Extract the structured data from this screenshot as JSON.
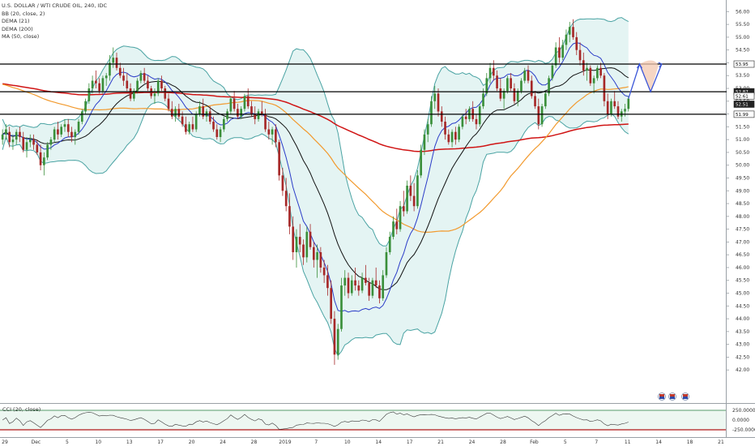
{
  "legend": {
    "symbol": "U.S. DOLLAR / WTI CRUDE OIL, 240, IDC",
    "bb": "BB (20, close, 2)",
    "dema21": "DEMA (21)",
    "dema200": "DEMA (200)",
    "ma50": "MA (50, close)"
  },
  "cci": {
    "label": "CCI (20, close)",
    "ticks": [
      "250.0000",
      "0.0000",
      "-250.0000"
    ]
  },
  "colors": {
    "up": "#3a8f3a",
    "down": "#a62828",
    "bb": "#4aa3a3",
    "bb_fill": "#d9f0ee",
    "dema21": "#2b3cc8",
    "dema200": "#d01414",
    "ma50": "#f29a2e",
    "sma": "#111111",
    "level": "#000000",
    "forecast": "#3a55d8",
    "forecast_fill": "#f3c8b0"
  },
  "chart_data": {
    "type": "candlestick",
    "y_axis": {
      "min": 41.5,
      "max": 56.2,
      "ticks": [
        "56.00",
        "55.50",
        "55.00",
        "54.50",
        "54.00",
        "53.50",
        "53.00",
        "52.50",
        "52.00",
        "51.50",
        "51.00",
        "50.50",
        "50.00",
        "49.50",
        "49.00",
        "48.50",
        "48.00",
        "47.50",
        "47.00",
        "46.50",
        "46.00",
        "45.50",
        "45.00",
        "44.50",
        "44.00",
        "43.50",
        "43.00",
        "42.50",
        "42.00"
      ]
    },
    "x_labels": [
      "29",
      "Dec",
      "5",
      "10",
      "13",
      "17",
      "20",
      "24",
      "28",
      "2019",
      "7",
      "10",
      "14",
      "17",
      "21",
      "24",
      "28",
      "Feb",
      "5",
      "7",
      "11",
      "14",
      "18",
      "21"
    ],
    "levels": [
      53.95,
      52.87,
      51.99
    ],
    "price_tags": [
      {
        "label": "53.95",
        "value": 53.95
      },
      {
        "label": "52.87",
        "value": 52.87
      },
      {
        "label": "52.61",
        "value": 52.61
      },
      {
        "label": "52.51",
        "value": 52.51
      },
      {
        "label": "51.99",
        "value": 51.99
      }
    ],
    "ohlc": [
      [
        51.0,
        51.4,
        50.8,
        51.2
      ],
      [
        51.2,
        51.6,
        51.0,
        51.4
      ],
      [
        51.3,
        51.5,
        50.7,
        50.9
      ],
      [
        50.9,
        51.2,
        50.6,
        51.0
      ],
      [
        51.0,
        51.4,
        50.8,
        51.3
      ],
      [
        51.3,
        51.5,
        50.9,
        51.1
      ],
      [
        51.1,
        51.3,
        50.5,
        50.6
      ],
      [
        50.6,
        51.1,
        50.3,
        50.9
      ],
      [
        50.9,
        51.2,
        50.7,
        51.0
      ],
      [
        51.0,
        51.2,
        50.6,
        50.8
      ],
      [
        50.8,
        51.0,
        50.4,
        50.5
      ],
      [
        50.5,
        50.8,
        49.8,
        50.0
      ],
      [
        50.0,
        50.5,
        49.6,
        50.3
      ],
      [
        50.3,
        50.9,
        50.2,
        50.8
      ],
      [
        50.8,
        51.1,
        50.6,
        51.0
      ],
      [
        51.0,
        51.5,
        50.9,
        51.4
      ],
      [
        51.4,
        51.7,
        51.0,
        51.2
      ],
      [
        51.2,
        51.6,
        51.1,
        51.5
      ],
      [
        51.5,
        51.8,
        51.3,
        51.6
      ],
      [
        51.6,
        51.8,
        51.1,
        51.3
      ],
      [
        51.3,
        51.5,
        50.9,
        51.1
      ],
      [
        51.1,
        51.4,
        50.8,
        51.3
      ],
      [
        51.3,
        51.8,
        51.2,
        51.7
      ],
      [
        51.7,
        52.2,
        51.6,
        52.1
      ],
      [
        52.1,
        52.6,
        52.0,
        52.5
      ],
      [
        52.5,
        53.2,
        52.4,
        53.0
      ],
      [
        53.0,
        53.5,
        52.8,
        53.3
      ],
      [
        53.3,
        53.7,
        53.0,
        53.2
      ],
      [
        53.2,
        53.4,
        52.8,
        52.9
      ],
      [
        52.9,
        53.5,
        52.8,
        53.4
      ],
      [
        53.4,
        53.6,
        53.1,
        53.5
      ],
      [
        53.5,
        54.3,
        53.3,
        54.0
      ],
      [
        54.0,
        54.6,
        53.8,
        54.2
      ],
      [
        54.2,
        54.4,
        53.7,
        53.8
      ],
      [
        53.8,
        54.0,
        53.4,
        53.5
      ],
      [
        53.5,
        53.8,
        53.1,
        53.3
      ],
      [
        53.3,
        53.6,
        52.9,
        53.0
      ],
      [
        53.0,
        53.2,
        52.5,
        52.6
      ],
      [
        52.6,
        53.0,
        52.5,
        52.9
      ],
      [
        52.9,
        53.4,
        52.8,
        53.3
      ],
      [
        53.3,
        53.7,
        53.2,
        53.6
      ],
      [
        53.6,
        53.8,
        53.2,
        53.3
      ],
      [
        53.3,
        53.5,
        52.9,
        53.0
      ],
      [
        53.0,
        53.1,
        52.6,
        52.7
      ],
      [
        52.7,
        53.0,
        52.4,
        52.8
      ],
      [
        52.8,
        53.4,
        52.7,
        53.3
      ],
      [
        53.3,
        53.5,
        52.9,
        53.0
      ],
      [
        53.0,
        53.1,
        52.5,
        52.6
      ],
      [
        52.6,
        52.8,
        52.1,
        52.2
      ],
      [
        52.2,
        52.5,
        51.8,
        51.9
      ],
      [
        51.9,
        52.3,
        51.7,
        52.2
      ],
      [
        52.2,
        52.4,
        51.8,
        51.9
      ],
      [
        51.9,
        52.1,
        51.5,
        51.6
      ],
      [
        51.6,
        51.9,
        51.2,
        51.3
      ],
      [
        51.3,
        51.7,
        51.2,
        51.6
      ],
      [
        51.6,
        51.9,
        51.3,
        51.4
      ],
      [
        51.4,
        52.1,
        51.3,
        52.0
      ],
      [
        52.0,
        52.5,
        51.9,
        52.3
      ],
      [
        52.3,
        52.6,
        51.8,
        51.9
      ],
      [
        51.9,
        52.2,
        51.7,
        52.1
      ],
      [
        52.1,
        52.3,
        51.6,
        51.7
      ],
      [
        51.7,
        51.9,
        51.3,
        51.4
      ],
      [
        51.4,
        51.6,
        51.0,
        51.1
      ],
      [
        51.1,
        51.5,
        50.9,
        51.4
      ],
      [
        51.4,
        51.9,
        51.3,
        51.8
      ],
      [
        51.8,
        52.2,
        51.7,
        52.1
      ],
      [
        52.1,
        52.7,
        52.0,
        52.6
      ],
      [
        52.6,
        52.9,
        52.1,
        52.2
      ],
      [
        52.2,
        52.4,
        51.8,
        51.9
      ],
      [
        51.9,
        52.3,
        51.8,
        52.2
      ],
      [
        52.2,
        52.8,
        52.1,
        52.7
      ],
      [
        52.7,
        53.0,
        52.2,
        52.3
      ],
      [
        52.3,
        52.5,
        51.9,
        52.0
      ],
      [
        52.0,
        52.3,
        51.6,
        51.8
      ],
      [
        51.8,
        52.2,
        51.7,
        52.1
      ],
      [
        52.1,
        52.5,
        51.9,
        52.0
      ],
      [
        52.0,
        52.2,
        51.3,
        51.4
      ],
      [
        51.4,
        51.7,
        51.0,
        51.2
      ],
      [
        51.2,
        51.5,
        50.8,
        51.4
      ],
      [
        51.4,
        51.6,
        50.7,
        50.9
      ],
      [
        50.9,
        51.0,
        49.4,
        49.6
      ],
      [
        49.6,
        49.9,
        48.8,
        49.0
      ],
      [
        49.0,
        49.5,
        48.2,
        48.4
      ],
      [
        48.4,
        48.9,
        47.3,
        47.6
      ],
      [
        47.6,
        48.0,
        46.3,
        46.6
      ],
      [
        46.6,
        47.5,
        46.0,
        47.2
      ],
      [
        47.2,
        47.7,
        46.6,
        46.9
      ],
      [
        46.9,
        47.1,
        46.1,
        46.4
      ],
      [
        46.4,
        47.6,
        46.2,
        47.4
      ],
      [
        47.4,
        47.7,
        46.7,
        46.8
      ],
      [
        46.8,
        47.0,
        46.0,
        46.3
      ],
      [
        46.3,
        46.9,
        45.6,
        46.6
      ],
      [
        46.6,
        46.8,
        45.8,
        46.0
      ],
      [
        46.0,
        46.3,
        45.4,
        45.7
      ],
      [
        45.7,
        46.1,
        44.9,
        45.2
      ],
      [
        45.2,
        45.5,
        43.8,
        44.0
      ],
      [
        44.0,
        44.3,
        42.2,
        42.6
      ],
      [
        42.6,
        43.8,
        42.4,
        43.6
      ],
      [
        43.6,
        45.6,
        43.5,
        45.3
      ],
      [
        45.3,
        45.9,
        44.9,
        45.6
      ],
      [
        45.6,
        45.8,
        44.8,
        45.0
      ],
      [
        45.0,
        45.7,
        44.9,
        45.5
      ],
      [
        45.5,
        46.0,
        45.1,
        45.3
      ],
      [
        45.3,
        45.5,
        44.9,
        45.1
      ],
      [
        45.1,
        45.8,
        45.0,
        45.6
      ],
      [
        45.6,
        46.1,
        45.3,
        45.4
      ],
      [
        45.4,
        45.6,
        44.7,
        44.9
      ],
      [
        44.9,
        45.6,
        44.8,
        45.5
      ],
      [
        45.5,
        46.0,
        45.2,
        45.3
      ],
      [
        45.3,
        45.5,
        44.6,
        44.8
      ],
      [
        44.8,
        45.9,
        44.7,
        45.7
      ],
      [
        45.7,
        46.8,
        45.6,
        46.6
      ],
      [
        46.6,
        47.4,
        46.5,
        47.2
      ],
      [
        47.2,
        48.0,
        47.1,
        47.8
      ],
      [
        47.8,
        48.3,
        47.3,
        47.5
      ],
      [
        47.5,
        48.6,
        47.4,
        48.4
      ],
      [
        48.4,
        49.0,
        48.0,
        48.2
      ],
      [
        48.2,
        49.4,
        48.1,
        49.2
      ],
      [
        49.2,
        49.6,
        48.6,
        48.8
      ],
      [
        48.8,
        49.3,
        48.2,
        48.4
      ],
      [
        48.4,
        49.8,
        48.3,
        49.6
      ],
      [
        49.6,
        50.8,
        49.5,
        50.6
      ],
      [
        50.6,
        51.4,
        50.4,
        51.2
      ],
      [
        51.2,
        51.8,
        50.9,
        51.6
      ],
      [
        51.6,
        52.7,
        51.5,
        52.5
      ],
      [
        52.5,
        53.1,
        52.2,
        52.8
      ],
      [
        52.8,
        53.0,
        51.9,
        52.1
      ],
      [
        52.1,
        52.3,
        51.5,
        51.7
      ],
      [
        51.7,
        51.9,
        51.0,
        51.2
      ],
      [
        51.2,
        51.4,
        50.8,
        50.9
      ],
      [
        50.9,
        51.4,
        50.7,
        51.3
      ],
      [
        51.3,
        51.5,
        50.8,
        51.0
      ],
      [
        51.0,
        51.6,
        50.9,
        51.5
      ],
      [
        51.5,
        52.0,
        51.4,
        51.9
      ],
      [
        51.9,
        52.2,
        51.6,
        51.8
      ],
      [
        51.8,
        52.3,
        51.7,
        52.2
      ],
      [
        52.2,
        52.5,
        51.7,
        51.8
      ],
      [
        51.8,
        52.0,
        51.4,
        51.6
      ],
      [
        51.6,
        52.4,
        51.5,
        52.3
      ],
      [
        52.3,
        53.0,
        52.2,
        52.8
      ],
      [
        52.8,
        53.6,
        52.7,
        53.4
      ],
      [
        53.4,
        54.0,
        53.2,
        53.8
      ],
      [
        53.8,
        54.1,
        53.3,
        53.5
      ],
      [
        53.5,
        53.7,
        52.9,
        53.0
      ],
      [
        53.0,
        53.4,
        52.5,
        52.6
      ],
      [
        52.6,
        53.0,
        52.2,
        52.9
      ],
      [
        52.9,
        53.5,
        52.8,
        53.4
      ],
      [
        53.4,
        53.6,
        52.9,
        53.0
      ],
      [
        53.0,
        53.2,
        52.4,
        52.5
      ],
      [
        52.5,
        53.0,
        52.3,
        52.9
      ],
      [
        52.9,
        53.4,
        52.8,
        53.3
      ],
      [
        53.3,
        53.8,
        53.2,
        53.7
      ],
      [
        53.7,
        53.9,
        53.2,
        53.3
      ],
      [
        53.3,
        53.5,
        52.6,
        52.7
      ],
      [
        52.7,
        52.9,
        52.2,
        52.3
      ],
      [
        52.3,
        52.6,
        51.4,
        51.6
      ],
      [
        51.6,
        52.4,
        51.5,
        52.3
      ],
      [
        52.3,
        52.9,
        52.2,
        52.8
      ],
      [
        52.8,
        53.5,
        52.7,
        53.4
      ],
      [
        53.4,
        54.0,
        53.3,
        53.9
      ],
      [
        53.9,
        54.8,
        53.8,
        54.6
      ],
      [
        54.6,
        55.0,
        54.0,
        54.2
      ],
      [
        54.2,
        54.9,
        54.1,
        54.7
      ],
      [
        54.7,
        55.3,
        54.5,
        55.1
      ],
      [
        55.1,
        55.6,
        54.8,
        55.4
      ],
      [
        55.4,
        55.7,
        54.9,
        55.0
      ],
      [
        55.0,
        55.2,
        54.3,
        54.5
      ],
      [
        54.5,
        54.8,
        53.9,
        54.1
      ],
      [
        54.1,
        54.4,
        53.5,
        53.7
      ],
      [
        53.7,
        54.0,
        53.3,
        53.8
      ],
      [
        53.8,
        53.9,
        53.1,
        53.2
      ],
      [
        53.2,
        53.5,
        52.8,
        53.4
      ],
      [
        53.4,
        53.9,
        53.3,
        53.8
      ],
      [
        53.8,
        54.0,
        53.4,
        53.5
      ],
      [
        53.5,
        53.6,
        52.3,
        52.5
      ],
      [
        52.5,
        52.8,
        51.8,
        52.0
      ],
      [
        52.0,
        52.6,
        51.9,
        52.5
      ],
      [
        52.5,
        52.9,
        52.2,
        52.3
      ],
      [
        52.3,
        52.5,
        51.8,
        51.9
      ],
      [
        51.9,
        52.2,
        51.7,
        52.1
      ],
      [
        52.1,
        52.4,
        51.9,
        52.2
      ],
      [
        52.2,
        52.7,
        52.1,
        52.6
      ]
    ],
    "forecast_path": [
      [
        52.6,
        0
      ],
      [
        53.95,
        1
      ],
      [
        52.87,
        2
      ],
      [
        53.95,
        3
      ]
    ],
    "cci_range": [
      -250,
      250
    ]
  }
}
